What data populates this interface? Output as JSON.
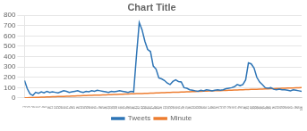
{
  "chart_data": {
    "type": "line",
    "title": "Chart Title",
    "x": [
      1,
      2,
      3,
      4,
      5,
      6,
      7,
      8,
      9,
      10,
      11,
      12,
      13,
      14,
      15,
      16,
      17,
      18,
      19,
      20,
      21,
      22,
      23,
      24,
      25,
      26,
      27,
      28,
      29,
      30,
      31,
      32,
      33,
      34,
      35,
      36,
      37,
      38,
      39,
      40,
      41,
      42,
      43,
      44,
      45,
      46,
      47,
      48,
      49,
      50,
      51,
      52,
      53,
      54,
      55,
      56,
      57,
      58,
      59,
      60,
      61,
      62,
      63,
      64,
      65,
      66,
      67,
      68,
      69,
      70,
      71,
      72,
      73,
      74,
      75,
      76,
      77,
      78,
      79,
      80,
      81,
      82,
      83,
      84,
      85,
      86,
      87,
      88,
      89,
      90,
      91,
      92,
      93,
      94,
      95,
      96,
      97,
      98,
      99,
      100
    ],
    "series": [
      {
        "name": "Tweets",
        "color": "#2E75B6",
        "values": [
          170,
          90,
          40,
          25,
          55,
          45,
          60,
          50,
          65,
          55,
          60,
          55,
          50,
          60,
          70,
          65,
          55,
          60,
          65,
          70,
          60,
          55,
          65,
          60,
          70,
          65,
          75,
          70,
          65,
          60,
          55,
          65,
          60,
          65,
          70,
          65,
          60,
          55,
          65,
          60,
          410,
          730,
          660,
          550,
          470,
          450,
          310,
          280,
          195,
          185,
          170,
          145,
          130,
          160,
          175,
          160,
          155,
          100,
          95,
          80,
          75,
          70,
          65,
          75,
          70,
          80,
          75,
          70,
          75,
          80,
          75,
          80,
          90,
          95,
          100,
          110,
          130,
          120,
          130,
          175,
          340,
          330,
          290,
          200,
          155,
          130,
          100,
          95,
          100,
          85,
          80,
          85,
          80,
          80,
          75,
          70,
          80,
          75,
          70,
          65
        ]
      },
      {
        "name": "Minute",
        "color": "#ED7D31",
        "values": [
          2,
          3,
          4,
          5,
          6,
          7,
          8,
          9,
          10,
          11,
          12,
          13,
          14,
          15,
          16,
          17,
          18,
          19,
          20,
          21,
          22,
          23,
          24,
          25,
          26,
          27,
          28,
          29,
          30,
          31,
          32,
          33,
          34,
          35,
          36,
          37,
          38,
          39,
          40,
          41,
          42,
          43,
          44,
          45,
          46,
          47,
          48,
          49,
          50,
          51,
          52,
          53,
          54,
          55,
          56,
          57,
          58,
          59,
          60,
          61,
          62,
          63,
          64,
          65,
          66,
          67,
          68,
          69,
          70,
          71,
          72,
          73,
          74,
          75,
          76,
          77,
          78,
          79,
          80,
          81,
          82,
          83,
          84,
          85,
          86,
          87,
          88,
          89,
          90,
          91,
          92,
          93,
          94,
          95,
          96,
          97,
          98,
          99,
          100,
          101
        ]
      }
    ],
    "xlim": [
      1,
      100
    ],
    "xticks": [
      1,
      2,
      3,
      4,
      5,
      6,
      7,
      8,
      9,
      10,
      11,
      12,
      13,
      14,
      15,
      16,
      17,
      18,
      19,
      20,
      21,
      22,
      23,
      24,
      25,
      26,
      27,
      28,
      29,
      30,
      31,
      32,
      33,
      34,
      35,
      36,
      37,
      38,
      39,
      40,
      41,
      42,
      43,
      44,
      45,
      46,
      47,
      48,
      49,
      50,
      51,
      52,
      53,
      54,
      55,
      56,
      57,
      58,
      59,
      60,
      61,
      62,
      63,
      64,
      65,
      66,
      67,
      68,
      69,
      70,
      71,
      72,
      73,
      74,
      75,
      76,
      77,
      78,
      79,
      80,
      81,
      82,
      83,
      84,
      85,
      86,
      87,
      88,
      89,
      90,
      91,
      92,
      93,
      94,
      95,
      96,
      97,
      98,
      99,
      100
    ],
    "ylim": [
      0,
      800
    ],
    "yticks": [
      0,
      100,
      200,
      300,
      400,
      500,
      600,
      700,
      800
    ],
    "grid": "y",
    "legend": "bottom"
  }
}
